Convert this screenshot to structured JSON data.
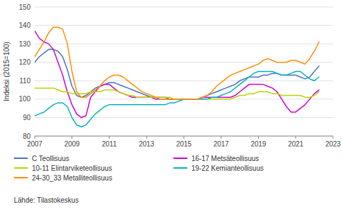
{
  "chart_data": {
    "type": "line",
    "ylabel": "Indeksi (2015=100)",
    "source": "Lähde: Tilastokeskus",
    "xlim": [
      2007,
      2023
    ],
    "xticks": [
      2007,
      2009,
      2011,
      2013,
      2015,
      2017,
      2019,
      2021,
      2023
    ],
    "ylim": [
      80,
      150
    ],
    "yticks": [
      80,
      90,
      100,
      110,
      120,
      130,
      140,
      150
    ],
    "grid": true,
    "legend": "bottom",
    "x": [
      2007,
      2007.25,
      2007.5,
      2007.75,
      2008,
      2008.25,
      2008.5,
      2008.75,
      2009,
      2009.25,
      2009.5,
      2009.75,
      2010,
      2010.25,
      2010.5,
      2010.75,
      2011,
      2011.25,
      2011.5,
      2011.75,
      2012,
      2012.25,
      2012.5,
      2012.75,
      2013,
      2013.25,
      2013.5,
      2013.75,
      2014,
      2014.25,
      2014.5,
      2014.75,
      2015,
      2015.25,
      2015.5,
      2015.75,
      2016,
      2016.25,
      2016.5,
      2016.75,
      2017,
      2017.25,
      2017.5,
      2017.75,
      2018,
      2018.25,
      2018.5,
      2018.75,
      2019,
      2019.25,
      2019.5,
      2019.75,
      2020,
      2020.25,
      2020.5,
      2020.75,
      2021,
      2021.25,
      2021.5,
      2021.75,
      2022,
      2022.25
    ],
    "series": [
      {
        "name": "C Teollisuus",
        "color": "#4472c4",
        "values": [
          120,
          123,
          125,
          127,
          127,
          126,
          123,
          116,
          107,
          102,
          101,
          102,
          104,
          106,
          107,
          108,
          109,
          109,
          108,
          107,
          106,
          105,
          104,
          103,
          102,
          101,
          101,
          101,
          101,
          100,
          100,
          100,
          100,
          100,
          100,
          100,
          101,
          102,
          103,
          104,
          105,
          106,
          107,
          108,
          110,
          111,
          112,
          112,
          112,
          113,
          113,
          114,
          114,
          113,
          113,
          113,
          113,
          112,
          111,
          112,
          115,
          118
        ]
      },
      {
        "name": "16-17 Metsäteollisuus",
        "color": "#cc00cc",
        "values": [
          137,
          133,
          131,
          130,
          127,
          120,
          113,
          104,
          97,
          92,
          90,
          91,
          101,
          104,
          107,
          108,
          108,
          106,
          104,
          103,
          102,
          101,
          101,
          101,
          101,
          101,
          100,
          100,
          100,
          100,
          100,
          100,
          100,
          100,
          100,
          100,
          101,
          101,
          101,
          101,
          101,
          101,
          101,
          102,
          104,
          106,
          108,
          108,
          108,
          108,
          107,
          106,
          104,
          100,
          96,
          93,
          93,
          95,
          97,
          100,
          103,
          105
        ]
      },
      {
        "name": "10-11 Elintarviketeollisuus",
        "color": "#b8d400",
        "values": [
          106,
          106,
          106,
          106,
          106,
          105,
          104,
          104,
          103,
          103,
          103,
          103,
          104,
          104,
          104,
          105,
          105,
          105,
          104,
          103,
          102,
          102,
          101,
          101,
          101,
          101,
          101,
          101,
          101,
          101,
          100,
          100,
          100,
          100,
          100,
          100,
          100,
          100,
          100,
          100,
          100,
          100,
          100,
          101,
          102,
          102,
          103,
          103,
          104,
          104,
          104,
          103,
          103,
          102,
          102,
          102,
          102,
          102,
          101,
          101,
          102,
          104
        ]
      },
      {
        "name": "19-22 Kemianteollisuus",
        "color": "#00b0c0",
        "values": [
          91,
          92,
          93,
          95,
          97,
          98,
          98,
          96,
          90,
          86,
          85,
          86,
          89,
          92,
          94,
          96,
          97,
          97,
          97,
          97,
          97,
          97,
          97,
          97,
          97,
          97,
          97,
          97,
          97,
          98,
          98,
          99,
          100,
          100,
          100,
          100,
          100,
          100,
          101,
          101,
          102,
          103,
          104,
          106,
          108,
          110,
          112,
          114,
          115,
          115,
          115,
          115,
          114,
          113,
          113,
          114,
          115,
          115,
          113,
          111,
          110,
          112
        ]
      },
      {
        "name": "24-30_33 Metalliteollisuus",
        "color": "#ff8c00",
        "values": [
          123,
          127,
          131,
          136,
          139,
          139,
          138,
          130,
          115,
          104,
          101,
          101,
          103,
          105,
          107,
          110,
          112,
          113,
          113,
          112,
          110,
          108,
          106,
          104,
          103,
          102,
          101,
          100,
          100,
          100,
          100,
          100,
          100,
          100,
          100,
          100,
          101,
          102,
          104,
          107,
          109,
          111,
          113,
          114,
          115,
          116,
          117,
          118,
          119,
          121,
          122,
          121,
          120,
          120,
          120,
          121,
          121,
          120,
          119,
          122,
          126,
          131
        ]
      }
    ]
  }
}
